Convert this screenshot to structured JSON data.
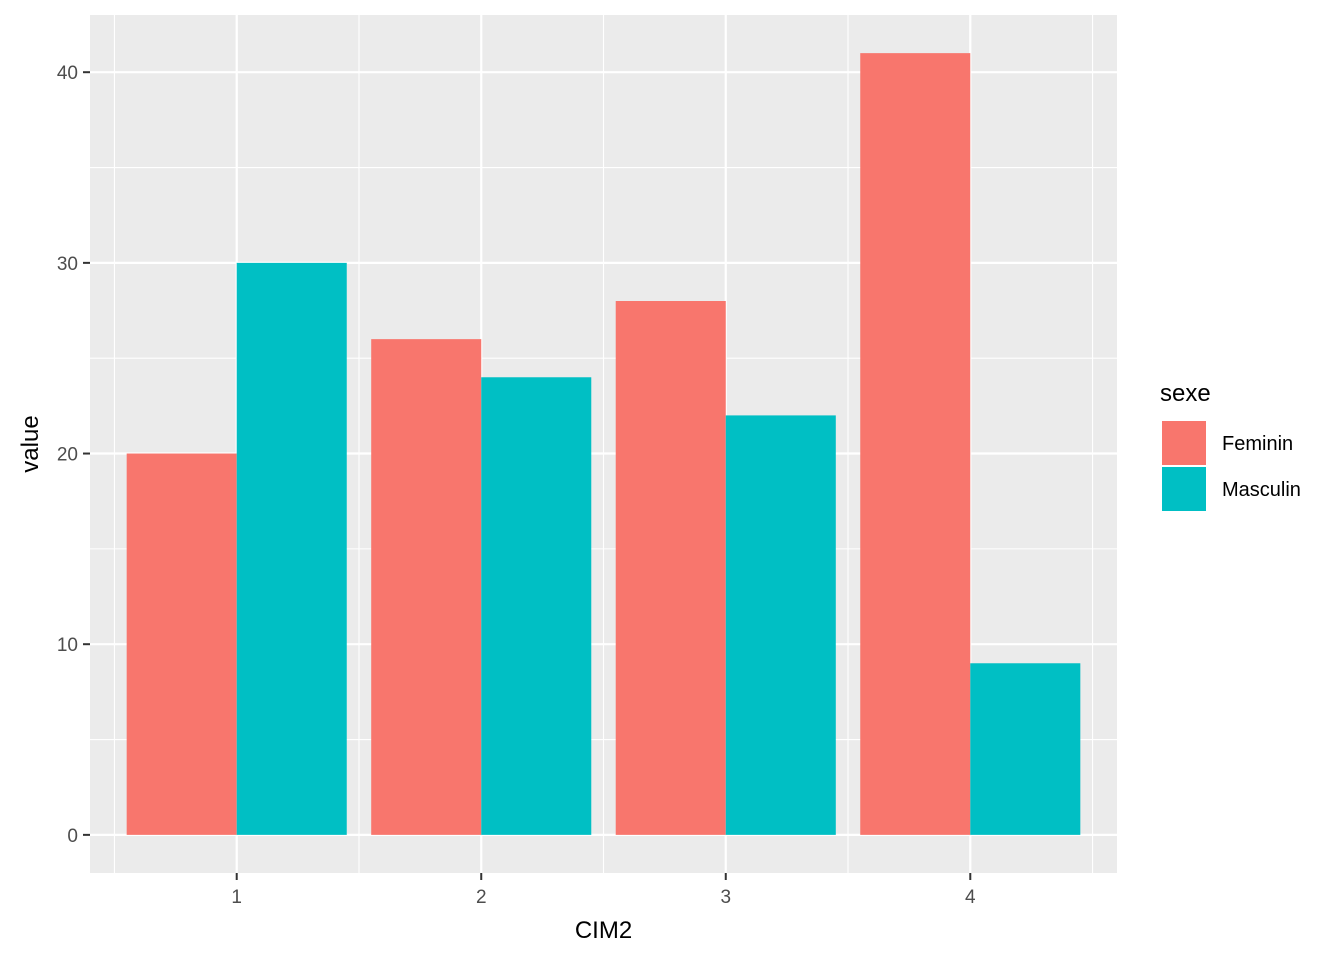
{
  "chart_data": {
    "type": "bar",
    "title": "",
    "xlabel": "CIM2",
    "ylabel": "value",
    "categories": [
      "1",
      "2",
      "3",
      "4"
    ],
    "series": [
      {
        "name": "Feminin",
        "values": [
          20,
          26,
          28,
          41
        ],
        "color": "#F8766D"
      },
      {
        "name": "Masculin",
        "values": [
          30,
          24,
          22,
          9
        ],
        "color": "#00BFC4"
      }
    ],
    "ylim": [
      -2,
      43
    ],
    "yticks": [
      "0",
      "10",
      "20",
      "30",
      "40"
    ],
    "grid": true,
    "legend": {
      "title": "sexe",
      "position": "right"
    }
  },
  "colors": {
    "panel_background": "#EBEBEB",
    "grid_major": "#FFFFFF",
    "tick_color": "#333333"
  }
}
